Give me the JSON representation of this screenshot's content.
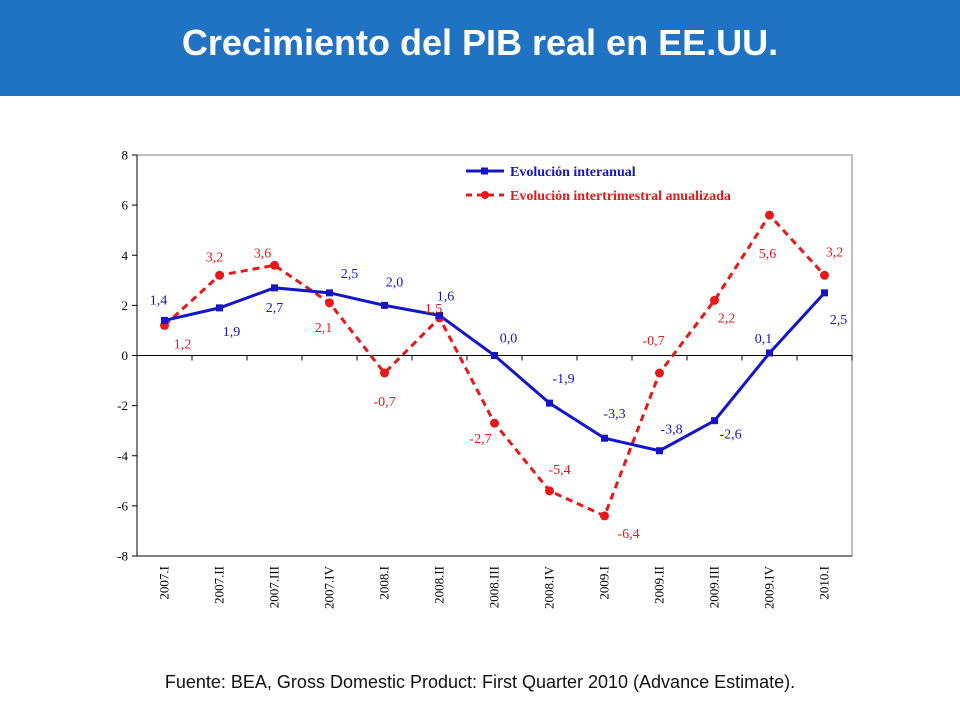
{
  "header": {
    "title": "Crecimiento del PIB real en EE.UU."
  },
  "footer": {
    "source": "Fuente: BEA, Gross Domestic Product: First Quarter 2010 (Advance Estimate)."
  },
  "colors": {
    "header_bg": "#1f73c2",
    "series1": "#1414c8",
    "series2": "#e81818"
  },
  "chart_data": {
    "type": "line",
    "title": "",
    "xlabel": "",
    "ylabel": "",
    "ylim": [
      -8,
      8
    ],
    "yticks": [
      "-8",
      "-6",
      "-4",
      "-2",
      "0",
      "2",
      "4",
      "6",
      "8"
    ],
    "grid": false,
    "legend_position": "top-right",
    "categories": [
      "2007.I",
      "2007.II",
      "2007.III",
      "2007.IV",
      "2008.I",
      "2008.II",
      "2008.III",
      "2008.IV",
      "2009.I",
      "2009.II",
      "2009.III",
      "2009.IV",
      "2010.I"
    ],
    "series": [
      {
        "name": "Evolución interanual",
        "style": "solid-square",
        "values": [
          1.4,
          1.9,
          2.7,
          2.5,
          2.0,
          1.6,
          0.0,
          -1.9,
          -3.3,
          -3.8,
          -2.6,
          0.1,
          2.5
        ],
        "labels": [
          "1,4",
          "1,9",
          "2,7",
          "2,5",
          "2,0",
          "1,6",
          "0,0",
          "-1,9",
          "-3,3",
          "-3,8",
          "-2,6",
          "0,1",
          "2,5"
        ]
      },
      {
        "name": "Evolución intertrimestral anualizada",
        "style": "dashed-circle",
        "values": [
          1.2,
          3.2,
          3.6,
          2.1,
          -0.7,
          1.5,
          -2.7,
          -5.4,
          -6.4,
          -0.7,
          2.2,
          5.6,
          3.2
        ],
        "labels": [
          "1,2",
          "3,2",
          "3,6",
          "2,1",
          "-0,7",
          "1,5",
          "-2,7",
          "-5,4",
          "-6,4",
          "-0,7",
          "2,2",
          "5,6",
          "3,2"
        ]
      }
    ]
  }
}
